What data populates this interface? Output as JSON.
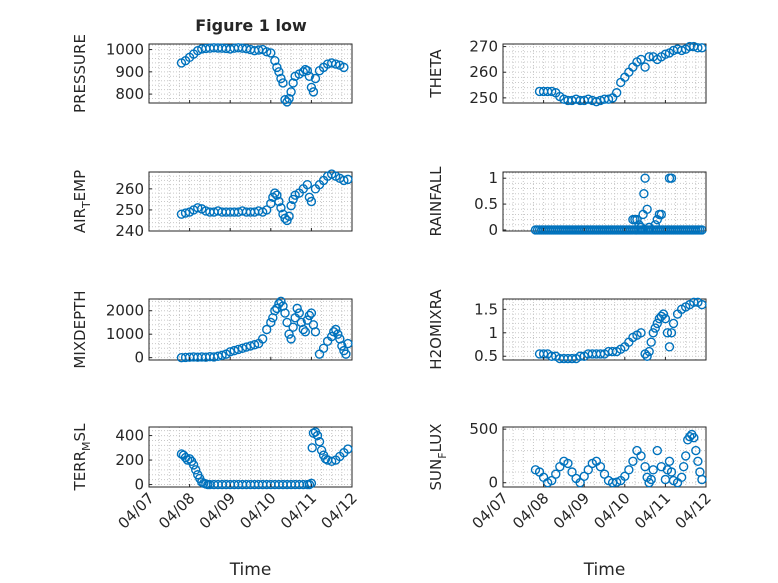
{
  "figure_title": "Figure 1 low",
  "chart_data": [
    {
      "type": "scatter",
      "ylabel": "PRESSURE",
      "ylabel_sub": "",
      "ylabel_sub_tail": "",
      "ylim": [
        760,
        1025
      ],
      "yticks": [
        800,
        900,
        1000
      ],
      "xlim": [
        0,
        5
      ],
      "xticks": [
        "04/07",
        "04/08",
        "04/09",
        "04/10",
        "04/11",
        "04/12"
      ],
      "grid": true,
      "show_xticklabels": false,
      "xlabel": "",
      "x": [
        0.8,
        0.9,
        1.0,
        1.1,
        1.2,
        1.3,
        1.4,
        1.5,
        1.6,
        1.7,
        1.8,
        1.9,
        2.0,
        2.1,
        2.2,
        2.3,
        2.4,
        2.5,
        2.6,
        2.7,
        2.8,
        2.9,
        3.0,
        3.1,
        3.15,
        3.2,
        3.25,
        3.3,
        3.35,
        3.4,
        3.45,
        3.5,
        3.55,
        3.6,
        3.7,
        3.8,
        3.85,
        3.9,
        3.95,
        4.0,
        4.05,
        4.1,
        4.2,
        4.3,
        4.4,
        4.5,
        4.6,
        4.7,
        4.8
      ],
      "y": [
        940,
        950,
        965,
        980,
        995,
        1003,
        1005,
        1006,
        1008,
        1007,
        1006,
        1005,
        1003,
        1006,
        1008,
        1006,
        1004,
        1000,
        995,
        998,
        1000,
        990,
        985,
        950,
        920,
        900,
        870,
        850,
        775,
        765,
        780,
        810,
        850,
        880,
        890,
        900,
        910,
        905,
        880,
        830,
        810,
        870,
        905,
        920,
        935,
        940,
        935,
        930,
        920
      ]
    },
    {
      "type": "scatter",
      "ylabel": "THETA",
      "ylabel_sub": "",
      "ylabel_sub_tail": "",
      "ylim": [
        248,
        271
      ],
      "yticks": [
        250,
        260,
        270
      ],
      "xlim": [
        0,
        5
      ],
      "xticks": [
        "04/07",
        "04/08",
        "04/09",
        "04/10",
        "04/11",
        "04/12"
      ],
      "grid": true,
      "show_xticklabels": false,
      "xlabel": "",
      "x": [
        0.9,
        1.0,
        1.1,
        1.2,
        1.3,
        1.4,
        1.5,
        1.6,
        1.7,
        1.8,
        1.9,
        2.0,
        2.1,
        2.2,
        2.3,
        2.4,
        2.5,
        2.6,
        2.7,
        2.8,
        2.9,
        3.0,
        3.1,
        3.2,
        3.3,
        3.4,
        3.5,
        3.6,
        3.7,
        3.8,
        3.9,
        4.0,
        4.1,
        4.2,
        4.3,
        4.4,
        4.5,
        4.6,
        4.7,
        4.8,
        4.9
      ],
      "y": [
        252.5,
        252.5,
        252.5,
        252.5,
        252.0,
        250.5,
        249.5,
        249.0,
        249.0,
        249.5,
        249.0,
        249.0,
        249.5,
        249.0,
        248.5,
        249.0,
        249.5,
        249.5,
        250.0,
        252.0,
        256.0,
        258.0,
        260.0,
        262.0,
        264.0,
        265.0,
        262.0,
        266.0,
        266.0,
        265.0,
        266.0,
        267.0,
        267.5,
        268.5,
        269.0,
        268.5,
        269.0,
        270.0,
        270.0,
        269.5,
        269.5
      ]
    },
    {
      "type": "scatter",
      "ylabel": "AIR",
      "ylabel_sub": "T",
      "ylabel_sub_tail": "EMP",
      "ylim": [
        240,
        268
      ],
      "yticks": [
        240,
        250,
        260
      ],
      "xlim": [
        0,
        5
      ],
      "xticks": [
        "04/07",
        "04/08",
        "04/09",
        "04/10",
        "04/11",
        "04/12"
      ],
      "grid": true,
      "show_xticklabels": false,
      "xlabel": "",
      "x": [
        0.8,
        0.9,
        1.0,
        1.1,
        1.2,
        1.3,
        1.4,
        1.5,
        1.6,
        1.7,
        1.8,
        1.9,
        2.0,
        2.1,
        2.2,
        2.3,
        2.4,
        2.5,
        2.6,
        2.7,
        2.8,
        2.9,
        3.0,
        3.05,
        3.1,
        3.15,
        3.2,
        3.25,
        3.3,
        3.35,
        3.4,
        3.45,
        3.5,
        3.55,
        3.6,
        3.7,
        3.8,
        3.9,
        3.95,
        4.0,
        4.1,
        4.2,
        4.3,
        4.4,
        4.5,
        4.6,
        4.7,
        4.8,
        4.9
      ],
      "y": [
        248.0,
        248.5,
        249.0,
        250.0,
        251.0,
        250.5,
        249.5,
        249.0,
        249.0,
        249.5,
        249.0,
        249.0,
        249.0,
        249.0,
        249.0,
        249.5,
        249.0,
        249.0,
        249.0,
        249.5,
        249.0,
        250.0,
        253.0,
        256.0,
        258.0,
        257.0,
        254.0,
        251.0,
        248.0,
        246.0,
        245.0,
        247.0,
        252.0,
        255.0,
        257.0,
        258.0,
        260.0,
        262.0,
        256.0,
        254.0,
        260.0,
        262.0,
        264.0,
        266.0,
        267.0,
        266.0,
        265.0,
        264.0,
        264.5
      ]
    },
    {
      "type": "scatter",
      "ylabel": "RAINFALL",
      "ylabel_sub": "",
      "ylabel_sub_tail": "",
      "ylim": [
        -0.02,
        1.12
      ],
      "yticks": [
        0,
        0.5,
        1
      ],
      "xlim": [
        0,
        5
      ],
      "xticks": [
        "04/07",
        "04/08",
        "04/09",
        "04/10",
        "04/11",
        "04/12"
      ],
      "grid": true,
      "show_xticklabels": false,
      "xlabel": "",
      "x": [
        0.8,
        0.85,
        0.9,
        0.95,
        1.0,
        1.05,
        1.1,
        1.15,
        1.2,
        1.25,
        1.3,
        1.35,
        1.4,
        1.45,
        1.5,
        1.55,
        1.6,
        1.65,
        1.7,
        1.75,
        1.8,
        1.85,
        1.9,
        1.95,
        2.0,
        2.05,
        2.1,
        2.15,
        2.2,
        2.25,
        2.3,
        2.35,
        2.4,
        2.45,
        2.5,
        2.55,
        2.6,
        2.65,
        2.7,
        2.75,
        2.8,
        2.85,
        2.9,
        2.95,
        3.0,
        3.05,
        3.1,
        3.15,
        3.2,
        3.25,
        3.3,
        3.35,
        3.4,
        3.45,
        3.5,
        3.55,
        3.6,
        3.65,
        3.7,
        3.75,
        3.8,
        3.85,
        3.9,
        3.95,
        4.0,
        4.05,
        4.1,
        4.15,
        4.2,
        4.25,
        4.3,
        4.35,
        4.4,
        4.45,
        4.5,
        4.55,
        4.6,
        4.65,
        4.7,
        4.75,
        4.8,
        4.85,
        4.9,
        3.2,
        3.25,
        3.3,
        3.35,
        3.4,
        3.45,
        3.47,
        3.5,
        3.55,
        3.6,
        3.75,
        3.8,
        3.85,
        3.9,
        4.1,
        4.15
      ],
      "y": [
        0,
        0,
        0,
        0,
        0,
        0,
        0,
        0,
        0,
        0,
        0,
        0,
        0,
        0,
        0,
        0,
        0,
        0,
        0,
        0,
        0,
        0,
        0,
        0,
        0,
        0,
        0,
        0,
        0,
        0,
        0,
        0,
        0,
        0,
        0,
        0,
        0,
        0,
        0,
        0,
        0,
        0,
        0,
        0,
        0,
        0,
        0,
        0,
        0,
        0,
        0,
        0,
        0,
        0,
        0,
        0,
        0,
        0,
        0,
        0,
        0,
        0,
        0,
        0,
        0,
        0,
        0,
        0,
        0,
        0,
        0,
        0,
        0,
        0,
        0,
        0,
        0,
        0,
        0,
        0,
        0,
        0,
        0,
        0.2,
        0.2,
        0.2,
        0.1,
        0.05,
        0.3,
        0.7,
        1.0,
        0.4,
        0.05,
        0.1,
        0.2,
        0.3,
        0.3,
        1.0,
        1.0
      ]
    },
    {
      "type": "scatter",
      "ylabel": "MIXDEPTH",
      "ylabel_sub": "",
      "ylabel_sub_tail": "",
      "ylim": [
        -100,
        2500
      ],
      "yticks": [
        0,
        1000,
        2000
      ],
      "xlim": [
        0,
        5
      ],
      "xticks": [
        "04/07",
        "04/08",
        "04/09",
        "04/10",
        "04/11",
        "04/12"
      ],
      "grid": true,
      "show_xticklabels": false,
      "xlabel": "",
      "x": [
        0.8,
        0.9,
        1.0,
        1.1,
        1.2,
        1.3,
        1.4,
        1.5,
        1.6,
        1.7,
        1.8,
        1.9,
        2.0,
        2.1,
        2.2,
        2.3,
        2.4,
        2.5,
        2.6,
        2.7,
        2.8,
        2.9,
        3.0,
        3.05,
        3.1,
        3.15,
        3.2,
        3.25,
        3.3,
        3.35,
        3.4,
        3.45,
        3.5,
        3.55,
        3.6,
        3.65,
        3.7,
        3.75,
        3.8,
        3.85,
        3.9,
        3.95,
        4.0,
        4.05,
        4.1,
        4.2,
        4.3,
        4.4,
        4.5,
        4.55,
        4.6,
        4.65,
        4.7,
        4.75,
        4.8,
        4.85,
        4.9
      ],
      "y": [
        0,
        10,
        20,
        30,
        20,
        30,
        20,
        40,
        30,
        60,
        100,
        150,
        250,
        300,
        350,
        400,
        450,
        500,
        550,
        600,
        800,
        1200,
        1500,
        1700,
        2000,
        2100,
        2300,
        2400,
        2200,
        1900,
        1500,
        1000,
        800,
        1300,
        1700,
        2100,
        1900,
        1500,
        1200,
        1100,
        1600,
        1800,
        1900,
        1400,
        1100,
        150,
        400,
        700,
        900,
        1100,
        1200,
        1000,
        800,
        500,
        300,
        150,
        600
      ]
    },
    {
      "type": "scatter",
      "ylabel": "H2OMIXRA",
      "ylabel_sub": "",
      "ylabel_sub_tail": "",
      "ylim": [
        0.42,
        1.72
      ],
      "yticks": [
        0.5,
        1,
        1.5
      ],
      "xlim": [
        0,
        5
      ],
      "xticks": [
        "04/07",
        "04/08",
        "04/09",
        "04/10",
        "04/11",
        "04/12"
      ],
      "grid": true,
      "show_xticklabels": false,
      "xlabel": "",
      "x": [
        0.9,
        1.0,
        1.1,
        1.2,
        1.3,
        1.4,
        1.5,
        1.6,
        1.7,
        1.8,
        1.9,
        2.0,
        2.1,
        2.2,
        2.3,
        2.4,
        2.5,
        2.6,
        2.7,
        2.8,
        2.9,
        3.0,
        3.1,
        3.2,
        3.3,
        3.4,
        3.5,
        3.55,
        3.6,
        3.65,
        3.7,
        3.75,
        3.8,
        3.85,
        3.9,
        3.95,
        4.0,
        4.05,
        4.1,
        4.15,
        4.2,
        4.3,
        4.4,
        4.5,
        4.6,
        4.7,
        4.8,
        4.9
      ],
      "y": [
        0.55,
        0.55,
        0.55,
        0.5,
        0.5,
        0.45,
        0.45,
        0.45,
        0.45,
        0.45,
        0.5,
        0.5,
        0.55,
        0.55,
        0.55,
        0.55,
        0.55,
        0.6,
        0.6,
        0.6,
        0.65,
        0.7,
        0.8,
        0.9,
        0.95,
        1.0,
        0.55,
        0.5,
        0.6,
        0.8,
        1.0,
        1.1,
        1.2,
        1.3,
        1.35,
        1.4,
        1.3,
        1.0,
        0.7,
        1.0,
        1.2,
        1.4,
        1.5,
        1.55,
        1.6,
        1.65,
        1.65,
        1.6
      ]
    },
    {
      "type": "scatter",
      "ylabel": "TERR",
      "ylabel_sub": "M",
      "ylabel_sub_tail": "SL",
      "ylim": [
        -20,
        470
      ],
      "yticks": [
        0,
        200,
        400
      ],
      "xlim": [
        0,
        5
      ],
      "xticks": [
        "04/07",
        "04/08",
        "04/09",
        "04/10",
        "04/11",
        "04/12"
      ],
      "grid": true,
      "show_xticklabels": true,
      "xlabel": "Time",
      "x": [
        0.8,
        0.85,
        0.9,
        0.95,
        1.0,
        1.05,
        1.1,
        1.15,
        1.2,
        1.25,
        1.3,
        1.35,
        1.4,
        1.45,
        1.5,
        1.6,
        1.7,
        1.8,
        1.9,
        2.0,
        2.1,
        2.2,
        2.3,
        2.4,
        2.5,
        2.6,
        2.7,
        2.8,
        2.9,
        3.0,
        3.1,
        3.2,
        3.3,
        3.4,
        3.5,
        3.6,
        3.7,
        3.8,
        3.9,
        3.95,
        4.0,
        4.02,
        4.05,
        4.1,
        4.15,
        4.2,
        4.25,
        4.3,
        4.35,
        4.4,
        4.5,
        4.6,
        4.7,
        4.8,
        4.9
      ],
      "y": [
        250,
        240,
        220,
        200,
        210,
        190,
        160,
        120,
        80,
        50,
        20,
        10,
        5,
        0,
        0,
        0,
        0,
        0,
        0,
        0,
        0,
        0,
        0,
        0,
        0,
        0,
        0,
        0,
        0,
        0,
        0,
        0,
        0,
        0,
        0,
        0,
        0,
        0,
        0,
        0,
        10,
        300,
        420,
        430,
        400,
        350,
        280,
        240,
        210,
        200,
        190,
        200,
        230,
        260,
        290
      ]
    },
    {
      "type": "scatter",
      "ylabel": "SUN",
      "ylabel_sub": "F",
      "ylabel_sub_tail": "LUX",
      "ylim": [
        -40,
        520
      ],
      "yticks": [
        0,
        500
      ],
      "xlim": [
        0,
        5
      ],
      "xticks": [
        "04/07",
        "04/08",
        "04/09",
        "04/10",
        "04/11",
        "04/12"
      ],
      "grid": true,
      "show_xticklabels": true,
      "xlabel": "Time",
      "x": [
        0.8,
        0.9,
        1.0,
        1.1,
        1.2,
        1.3,
        1.4,
        1.5,
        1.6,
        1.7,
        1.8,
        1.9,
        2.0,
        2.1,
        2.2,
        2.3,
        2.4,
        2.5,
        2.6,
        2.7,
        2.8,
        2.9,
        3.0,
        3.1,
        3.2,
        3.3,
        3.4,
        3.5,
        3.55,
        3.6,
        3.65,
        3.7,
        3.8,
        3.9,
        4.0,
        4.05,
        4.1,
        4.15,
        4.2,
        4.3,
        4.4,
        4.45,
        4.5,
        4.55,
        4.6,
        4.65,
        4.7,
        4.75,
        4.8,
        4.85,
        4.9
      ],
      "y": [
        120,
        100,
        50,
        0,
        20,
        80,
        150,
        200,
        180,
        100,
        40,
        0,
        60,
        120,
        180,
        200,
        150,
        80,
        20,
        0,
        5,
        20,
        60,
        120,
        200,
        300,
        250,
        150,
        50,
        0,
        30,
        120,
        300,
        150,
        30,
        120,
        200,
        100,
        20,
        0,
        50,
        150,
        250,
        400,
        430,
        450,
        420,
        300,
        200,
        100,
        30
      ]
    }
  ]
}
